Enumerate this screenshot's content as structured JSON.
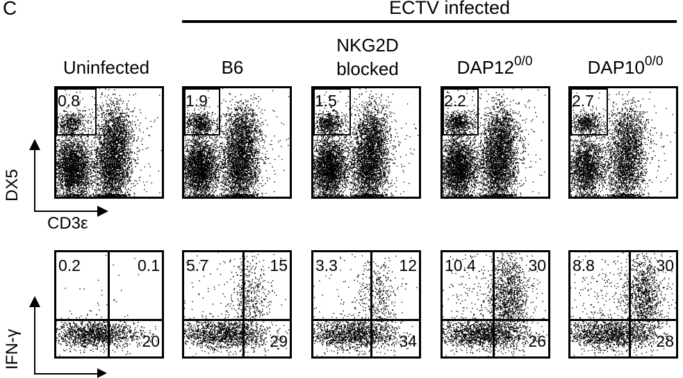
{
  "panel_letter": "C",
  "header": {
    "label": "ECTV infected"
  },
  "columns": [
    {
      "id": "uninfected",
      "label_lines": [
        "Uninfected"
      ],
      "sup": ""
    },
    {
      "id": "b6",
      "label_lines": [
        "B6"
      ],
      "sup": ""
    },
    {
      "id": "nkg2d",
      "label_lines": [
        "NKG2D",
        "blocked"
      ],
      "sup": ""
    },
    {
      "id": "dap12",
      "label_lines": [
        "DAP12"
      ],
      "sup": "0/0"
    },
    {
      "id": "dap10",
      "label_lines": [
        "DAP10"
      ],
      "sup": "0/0"
    }
  ],
  "row1": {
    "y_axis_label": "DX5",
    "x_axis_label": "CD3ε",
    "gate_values": [
      "0.8",
      "1.9",
      "1.5",
      "2.2",
      "2.7"
    ]
  },
  "row2": {
    "y_axis_label": "IFN-γ",
    "quadrants": [
      {
        "ul": "0.2",
        "ur": "0.1",
        "lr": "20"
      },
      {
        "ul": "5.7",
        "ur": "15",
        "lr": "29"
      },
      {
        "ul": "3.3",
        "ur": "12",
        "lr": "34"
      },
      {
        "ul": "10.4",
        "ur": "30",
        "lr": "26"
      },
      {
        "ul": "8.8",
        "ur": "30",
        "lr": "28"
      }
    ]
  },
  "style": {
    "ink": "#000000",
    "background": "#ffffff"
  }
}
